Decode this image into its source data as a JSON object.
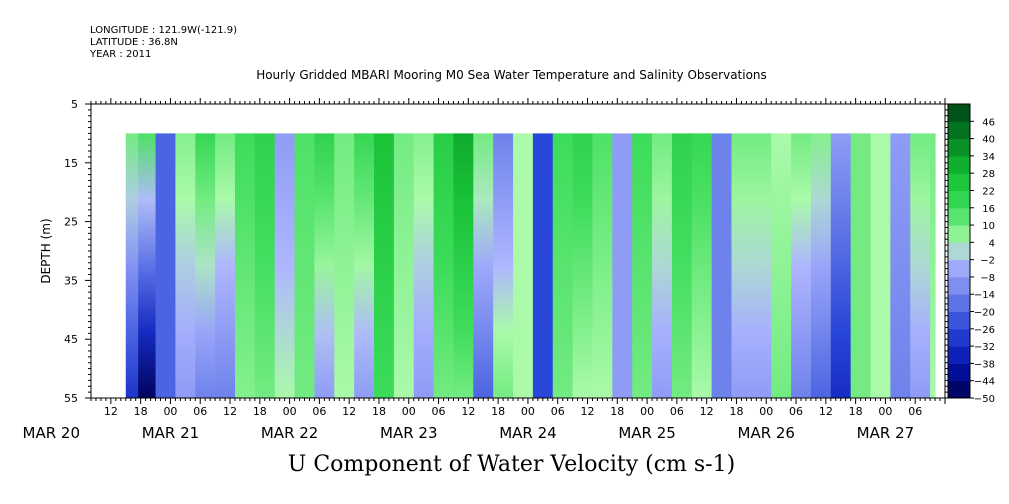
{
  "header": {
    "longitude": "LONGITUDE : 121.9W(-121.9)",
    "latitude": "LATITUDE : 36.8N",
    "year": "YEAR : 2011",
    "title": "Hourly Gridded MBARI Mooring M0 Sea Water Temperature and Salinity Observations"
  },
  "bottom_title": "U Component of Water Velocity (cm s-1)",
  "colors": {
    "most_negative": "#000050",
    "negative": "#2244cc",
    "near_zero_negative": "#aab4ff",
    "near_zero_positive": "#aaffaa",
    "positive": "#22cc44",
    "most_positive": "#004416"
  },
  "chart_data": {
    "type": "heatmap",
    "title": "Hourly Gridded MBARI Mooring M0 Sea Water Temperature and Salinity Observations",
    "xlabel": "",
    "ylabel": "DEPTH (m)",
    "variable": "U Component of Water Velocity (cm s-1)",
    "y_range": [
      5,
      55
    ],
    "y_ticks": [
      5,
      15,
      25,
      35,
      45,
      55
    ],
    "y_inverted": true,
    "data_depth_range": [
      10,
      55
    ],
    "x_range_hours": [
      "2011-03-20 08:00",
      "2011-03-27 12:00"
    ],
    "data_start": "2011-03-20 15:00",
    "x_hour_ticks": [
      "12",
      "18",
      "00",
      "06",
      "12",
      "18",
      "00",
      "06",
      "12",
      "18",
      "00",
      "06",
      "12",
      "18",
      "00",
      "06",
      "12",
      "18",
      "00",
      "06",
      "12",
      "18",
      "00",
      "06",
      "12",
      "18",
      "00",
      "06"
    ],
    "x_day_labels": [
      "MAR 20",
      "MAR 21",
      "MAR 22",
      "MAR 23",
      "MAR 24",
      "MAR 25",
      "MAR 26",
      "MAR 27"
    ],
    "colorbar": {
      "levels": [
        -50,
        -44,
        -38,
        -32,
        -26,
        -20,
        -14,
        -8,
        -2,
        4,
        10,
        16,
        22,
        28,
        34,
        40,
        46
      ],
      "labels": [
        "46",
        "40",
        "34",
        "28",
        "22",
        "16",
        "10",
        "4",
        "-2",
        "-8",
        "-14",
        "-20",
        "-26",
        "-32",
        "-38",
        "-44",
        "-50"
      ]
    },
    "columns": [
      {
        "time": "2011-03-20 16:00",
        "u_surface": 10,
        "u_bottom": -30
      },
      {
        "time": "2011-03-20 19:00",
        "u_surface": 14,
        "u_bottom": -48
      },
      {
        "time": "2011-03-20 23:00",
        "u_surface": -20,
        "u_bottom": -20
      },
      {
        "time": "2011-03-21 03:00",
        "u_surface": 8,
        "u_bottom": -8
      },
      {
        "time": "2011-03-21 07:00",
        "u_surface": 18,
        "u_bottom": -14
      },
      {
        "time": "2011-03-21 11:00",
        "u_surface": 10,
        "u_bottom": -14
      },
      {
        "time": "2011-03-21 15:00",
        "u_surface": 16,
        "u_bottom": 8
      },
      {
        "time": "2011-03-21 19:00",
        "u_surface": 20,
        "u_bottom": 10
      },
      {
        "time": "2011-03-21 23:00",
        "u_surface": -8,
        "u_bottom": 4
      },
      {
        "time": "2011-03-22 03:00",
        "u_surface": 14,
        "u_bottom": 10
      },
      {
        "time": "2011-03-22 07:00",
        "u_surface": 20,
        "u_bottom": -8
      },
      {
        "time": "2011-03-22 11:00",
        "u_surface": 10,
        "u_bottom": 4
      },
      {
        "time": "2011-03-22 15:00",
        "u_surface": 18,
        "u_bottom": -8
      },
      {
        "time": "2011-03-22 19:00",
        "u_surface": 26,
        "u_bottom": 16
      },
      {
        "time": "2011-03-22 23:00",
        "u_surface": 10,
        "u_bottom": 4
      },
      {
        "time": "2011-03-23 03:00",
        "u_surface": 8,
        "u_bottom": -8
      },
      {
        "time": "2011-03-23 07:00",
        "u_surface": 22,
        "u_bottom": 10
      },
      {
        "time": "2011-03-23 11:00",
        "u_surface": 32,
        "u_bottom": 10
      },
      {
        "time": "2011-03-23 15:00",
        "u_surface": 10,
        "u_bottom": -20
      },
      {
        "time": "2011-03-23 19:00",
        "u_surface": -14,
        "u_bottom": 10
      },
      {
        "time": "2011-03-23 23:00",
        "u_surface": 4,
        "u_bottom": 4
      },
      {
        "time": "2011-03-24 03:00",
        "u_surface": -26,
        "u_bottom": -26
      },
      {
        "time": "2011-03-24 07:00",
        "u_surface": 16,
        "u_bottom": 10
      },
      {
        "time": "2011-03-24 11:00",
        "u_surface": 20,
        "u_bottom": 4
      },
      {
        "time": "2011-03-24 15:00",
        "u_surface": 14,
        "u_bottom": 4
      },
      {
        "time": "2011-03-24 19:00",
        "u_surface": -8,
        "u_bottom": -8
      },
      {
        "time": "2011-03-24 23:00",
        "u_surface": 16,
        "u_bottom": 10
      },
      {
        "time": "2011-03-25 03:00",
        "u_surface": 10,
        "u_bottom": -8
      },
      {
        "time": "2011-03-25 07:00",
        "u_surface": 20,
        "u_bottom": 10
      },
      {
        "time": "2011-03-25 11:00",
        "u_surface": 18,
        "u_bottom": 4
      },
      {
        "time": "2011-03-25 15:00",
        "u_surface": -14,
        "u_bottom": -14
      },
      {
        "time": "2011-03-25 19:00",
        "u_surface": 10,
        "u_bottom": -8
      },
      {
        "time": "2011-03-25 23:00",
        "u_surface": 10,
        "u_bottom": -8
      },
      {
        "time": "2011-03-26 03:00",
        "u_surface": 4,
        "u_bottom": 10
      },
      {
        "time": "2011-03-26 07:00",
        "u_surface": 10,
        "u_bottom": -14
      },
      {
        "time": "2011-03-26 11:00",
        "u_surface": 8,
        "u_bottom": -20
      },
      {
        "time": "2011-03-26 15:00",
        "u_surface": -8,
        "u_bottom": -32
      },
      {
        "time": "2011-03-26 19:00",
        "u_surface": 10,
        "u_bottom": 10
      },
      {
        "time": "2011-03-26 23:00",
        "u_surface": 4,
        "u_bottom": 4
      },
      {
        "time": "2011-03-27 03:00",
        "u_surface": -8,
        "u_bottom": -14
      },
      {
        "time": "2011-03-27 07:00",
        "u_surface": 10,
        "u_bottom": -8
      },
      {
        "time": "2011-03-27 11:00",
        "u_surface": 10,
        "u_bottom": 4
      }
    ]
  }
}
